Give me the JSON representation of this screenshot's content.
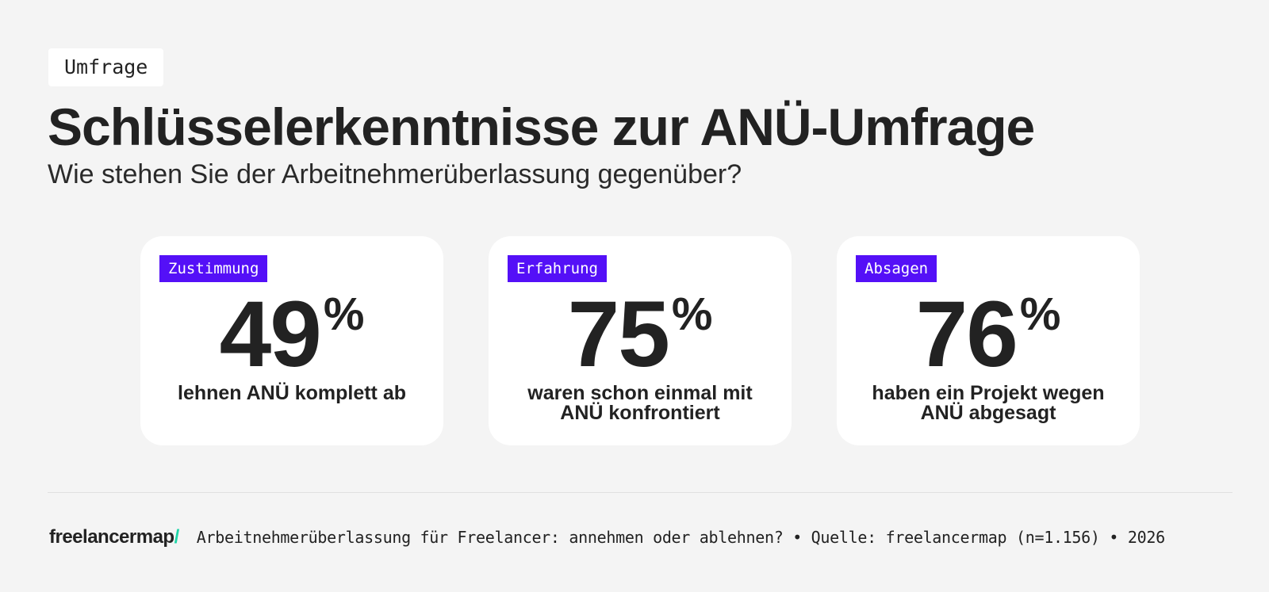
{
  "header": {
    "tag": "Umfrage",
    "title": "Schlüsselerkenntnisse zur ANÜ-Umfrage",
    "subtitle": "Wie stehen Sie der Arbeitnehmerüberlassung gegenüber?"
  },
  "cards": [
    {
      "badge": "Zustimmung",
      "value": "49",
      "unit": "%",
      "description": "lehnen ANÜ komplett ab"
    },
    {
      "badge": "Erfahrung",
      "value": "75",
      "unit": "%",
      "description": "waren schon einmal mit ANÜ konfrontiert"
    },
    {
      "badge": "Absagen",
      "value": "76",
      "unit": "%",
      "description": "haben ein Projekt wegen ANÜ abgesagt"
    }
  ],
  "footer": {
    "logo_text": "freelancermap",
    "logo_mark": "/",
    "source_text": "Arbeitnehmerüberlassung für Freelancer: annehmen oder ablehnen? • Quelle: freelancermap (n=1.156) • 2026"
  },
  "colors": {
    "background": "#f4f4f4",
    "card": "#ffffff",
    "badge": "#5410f7",
    "badge_text": "#ffffff",
    "text": "#222222",
    "logo_accent": "#1fd5a8"
  }
}
